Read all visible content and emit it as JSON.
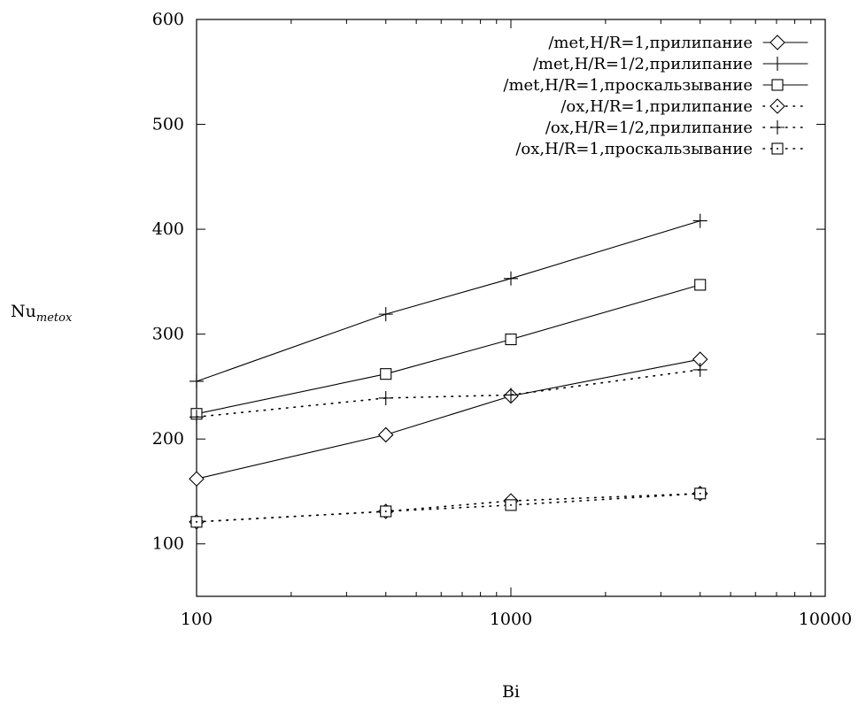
{
  "chart_data": {
    "type": "line",
    "xscale": "log",
    "xlim": [
      100,
      10000
    ],
    "ylim": [
      50,
      600
    ],
    "xticks": [
      100,
      1000,
      10000
    ],
    "xtick_labels": [
      "100",
      "1000",
      "10000"
    ],
    "yticks": [
      100,
      200,
      300,
      400,
      500,
      600
    ],
    "ytick_labels": [
      "100",
      "200",
      "300",
      "400",
      "500",
      "600"
    ],
    "xlabel": "Bi",
    "ylabel": "Nu",
    "ylabel_sub": "metox",
    "grid": false,
    "legend_position": "top-right",
    "series": [
      {
        "name": "/met,H/R=1,прилипание",
        "marker": "diamond",
        "style": "solid",
        "x": [
          100,
          400,
          1000,
          4000
        ],
        "y": [
          162,
          204,
          241,
          276
        ]
      },
      {
        "name": "/met,H/R=1/2,прилипание",
        "marker": "plus",
        "style": "solid",
        "x": [
          100,
          400,
          1000,
          4000
        ],
        "y": [
          255,
          319,
          353,
          408
        ]
      },
      {
        "name": "/met,H/R=1,проскальзывание",
        "marker": "square",
        "style": "solid",
        "x": [
          100,
          400,
          1000,
          4000
        ],
        "y": [
          224,
          262,
          295,
          347
        ]
      },
      {
        "name": "/ox,H/R=1,прилипание",
        "marker": "diamond",
        "style": "dotted",
        "x": [
          100,
          400,
          1000,
          4000
        ],
        "y": [
          121,
          131,
          141,
          148
        ]
      },
      {
        "name": "/ox,H/R=1/2,прилипание",
        "marker": "plus",
        "style": "dotted",
        "x": [
          100,
          400,
          1000,
          4000
        ],
        "y": [
          221,
          239,
          242,
          266
        ]
      },
      {
        "name": "/ox,H/R=1,проскальзывание",
        "marker": "square",
        "style": "dotted",
        "x": [
          100,
          400,
          1000,
          4000
        ],
        "y": [
          121,
          131,
          137,
          148
        ]
      }
    ]
  }
}
